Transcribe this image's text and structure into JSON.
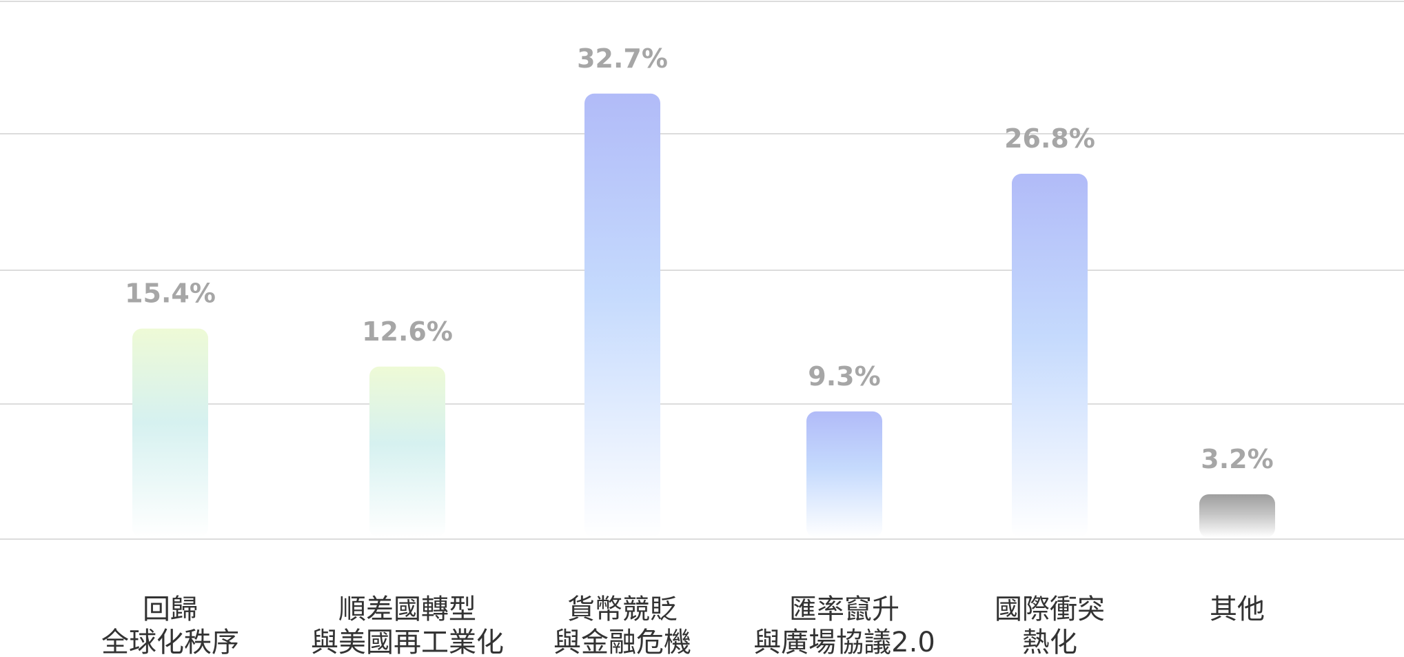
{
  "chart_data": {
    "type": "bar",
    "categories": [
      [
        "回歸",
        "全球化秩序"
      ],
      [
        "順差國轉型",
        "與美國再工業化"
      ],
      [
        "貨幣競貶",
        "與金融危機"
      ],
      [
        "匯率竄升",
        "與廣場協議2.0"
      ],
      [
        "國際衝突",
        "熱化"
      ],
      [
        "其他"
      ]
    ],
    "values": [
      15.4,
      12.6,
      32.7,
      9.3,
      26.8,
      3.2
    ],
    "value_labels": [
      "15.4%",
      "12.6%",
      "32.7%",
      "9.3%",
      "26.8%",
      "3.2%"
    ],
    "bar_colors": [
      {
        "top": "#eefad6",
        "mid": "#d6f1f0",
        "bottom": "#ffffff"
      },
      {
        "top": "#eefad6",
        "mid": "#d6f1f0",
        "bottom": "#ffffff"
      },
      {
        "top": "#b1bbf8",
        "mid": "#c5dafd",
        "bottom": "#ffffff"
      },
      {
        "top": "#b1bbf8",
        "mid": "#c5dafd",
        "bottom": "#ffffff"
      },
      {
        "top": "#b1bbf8",
        "mid": "#c5dafd",
        "bottom": "#ffffff"
      },
      {
        "top": "#9e9e9e",
        "mid": "#c4c4c4",
        "bottom": "#ffffff"
      }
    ],
    "ylim": [
      0,
      40
    ],
    "grid": true,
    "title": "",
    "xlabel": "",
    "ylabel": ""
  }
}
